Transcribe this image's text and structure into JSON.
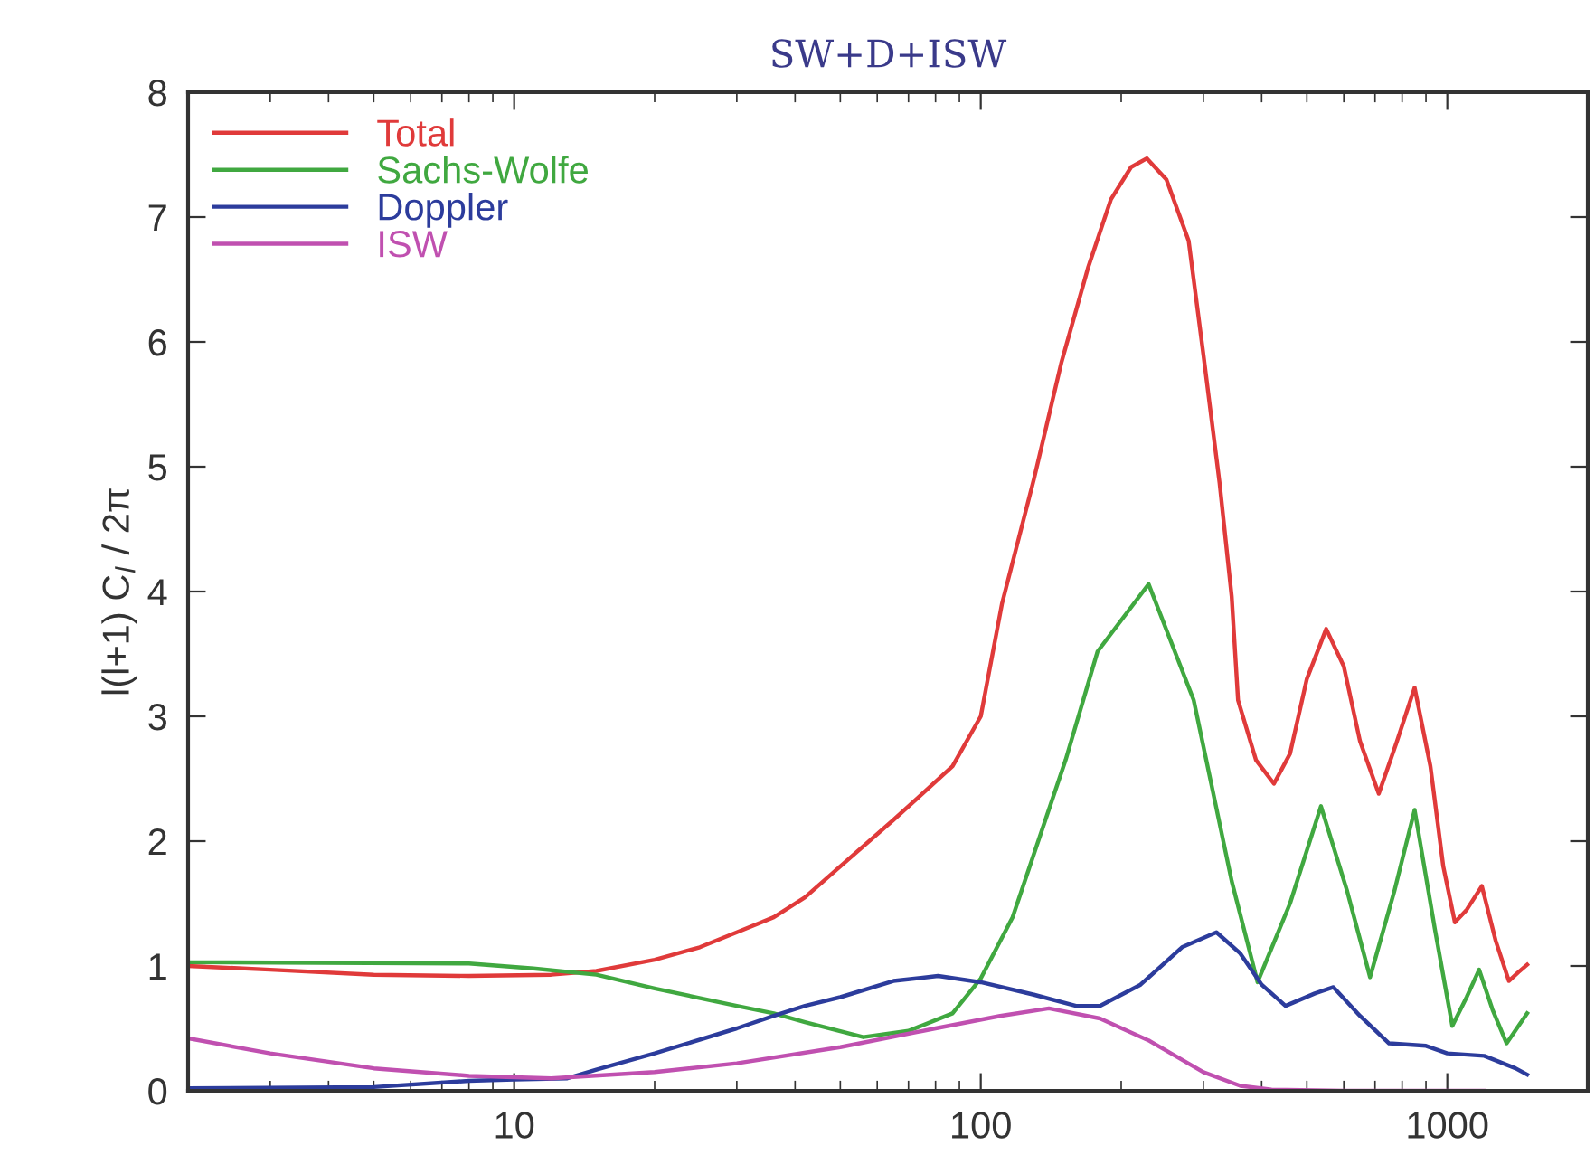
{
  "chart_data": {
    "type": "line",
    "title": "SW+D+ISW",
    "ylabel": "l(l+1) C$_{l}$ / 2π",
    "log": "x",
    "xlim": [
      2,
      2000
    ],
    "xticks": [
      10,
      100,
      1000
    ],
    "ylim": [
      0,
      8
    ],
    "yticks": [
      0,
      1,
      2,
      3,
      4,
      5,
      6,
      7,
      8
    ],
    "grid": false,
    "legend": "top left",
    "marker": "none",
    "line_style": "solid",
    "series": [
      {
        "name": "Total",
        "color": "#e03a3a",
        "x": [
          2,
          3,
          5,
          8,
          12,
          15,
          20,
          25,
          30,
          36,
          42,
          48,
          65,
          87,
          100,
          111,
          130,
          149,
          170,
          190,
          210,
          227,
          250,
          279,
          300,
          325,
          345,
          356,
          389,
          425,
          460,
          500,
          550,
          600,
          650,
          713,
          780,
          851,
          920,
          980,
          1038,
          1100,
          1186,
          1270,
          1355,
          1420,
          1483
        ],
        "values": [
          1.0,
          0.97,
          0.93,
          0.92,
          0.93,
          0.96,
          1.05,
          1.15,
          1.27,
          1.39,
          1.55,
          1.74,
          2.17,
          2.6,
          3.0,
          3.9,
          4.9,
          5.84,
          6.6,
          7.14,
          7.4,
          7.47,
          7.3,
          6.81,
          5.9,
          4.87,
          3.96,
          3.13,
          2.65,
          2.46,
          2.7,
          3.3,
          3.7,
          3.4,
          2.8,
          2.38,
          2.8,
          3.23,
          2.6,
          1.8,
          1.35,
          1.45,
          1.64,
          1.2,
          0.88,
          0.95,
          1.01
        ]
      },
      {
        "name": "Sachs-Wolfe",
        "color": "#40a840",
        "x": [
          2,
          8,
          11,
          15,
          20,
          30,
          36,
          42,
          56,
          70,
          87,
          100,
          117,
          152,
          178,
          229,
          286,
          345,
          392,
          460,
          536,
          610,
          683,
          770,
          851,
          940,
          1025,
          1100,
          1170,
          1250,
          1340,
          1483
        ],
        "values": [
          1.03,
          1.02,
          0.98,
          0.93,
          0.82,
          0.68,
          0.62,
          0.55,
          0.43,
          0.48,
          0.62,
          0.9,
          1.39,
          2.65,
          3.52,
          4.06,
          3.13,
          1.68,
          0.87,
          1.5,
          2.28,
          1.6,
          0.91,
          1.6,
          2.25,
          1.3,
          0.52,
          0.75,
          0.97,
          0.65,
          0.38,
          0.62
        ]
      },
      {
        "name": "Doppler",
        "color": "#2c3c9c",
        "x": [
          2,
          5,
          8,
          10,
          13,
          15,
          20,
          30,
          36,
          42,
          50,
          65,
          81,
          100,
          130,
          160,
          180,
          220,
          270,
          320,
          360,
          400,
          450,
          520,
          570,
          650,
          750,
          900,
          1000,
          1200,
          1400,
          1483
        ],
        "values": [
          0.02,
          0.03,
          0.08,
          0.09,
          0.1,
          0.17,
          0.3,
          0.5,
          0.6,
          0.68,
          0.75,
          0.88,
          0.92,
          0.87,
          0.77,
          0.68,
          0.68,
          0.85,
          1.15,
          1.27,
          1.1,
          0.85,
          0.68,
          0.78,
          0.83,
          0.6,
          0.38,
          0.36,
          0.3,
          0.28,
          0.18,
          0.13
        ]
      },
      {
        "name": "ISW",
        "color": "#c050b0",
        "x": [
          2,
          3,
          5,
          8,
          12,
          20,
          30,
          50,
          80,
          110,
          140,
          180,
          230,
          300,
          360,
          420,
          600,
          1200
        ],
        "values": [
          0.42,
          0.3,
          0.18,
          0.12,
          0.1,
          0.15,
          0.22,
          0.35,
          0.5,
          0.6,
          0.66,
          0.58,
          0.4,
          0.15,
          0.04,
          0.01,
          0.0,
          0.0
        ]
      }
    ]
  }
}
